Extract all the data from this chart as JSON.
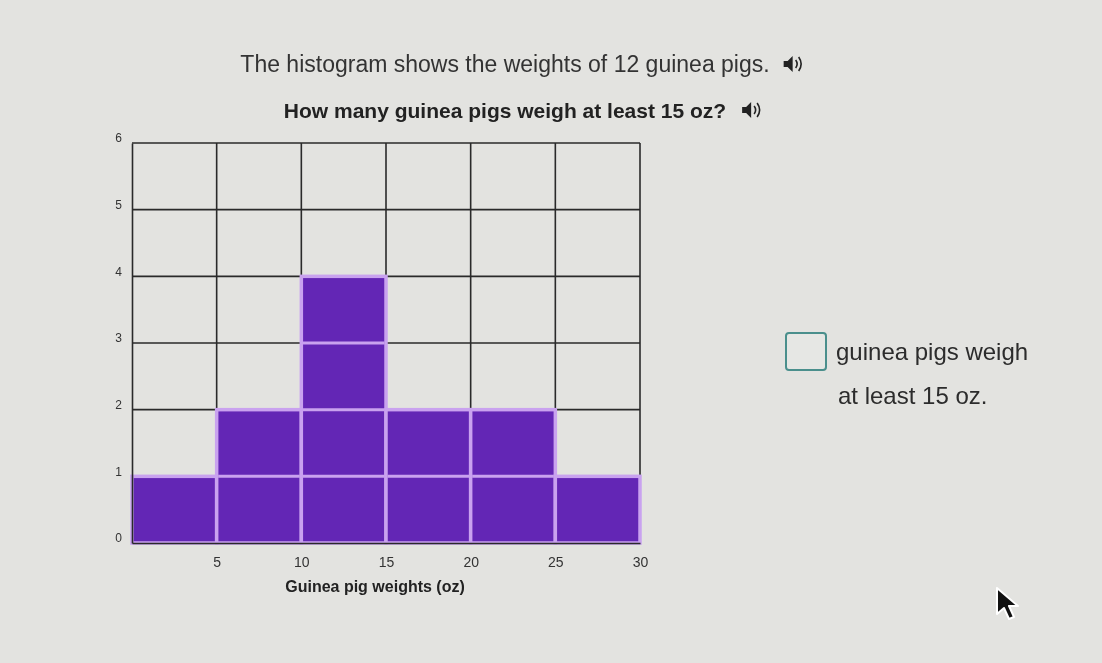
{
  "chart_data": {
    "type": "histogram",
    "title": "The histogram shows the weights of 12 guinea pigs.",
    "subtitle": "How many guinea pigs weigh at least 15 oz?",
    "xlabel": "Guinea pig weights (oz)",
    "bins": [
      0,
      5,
      10,
      15,
      20,
      25,
      30
    ],
    "values": [
      1,
      2,
      4,
      2,
      2,
      1
    ],
    "color": "#6326b5",
    "xlim": [
      0,
      30
    ],
    "xticks": [
      5,
      10,
      15,
      20,
      25,
      30
    ],
    "ylim": [
      0,
      6
    ],
    "yticks": [
      0,
      1,
      2,
      3,
      4,
      5,
      6
    ],
    "grid": true,
    "annotations": [
      "guinea pigs weigh",
      "at least 15 oz."
    ]
  }
}
